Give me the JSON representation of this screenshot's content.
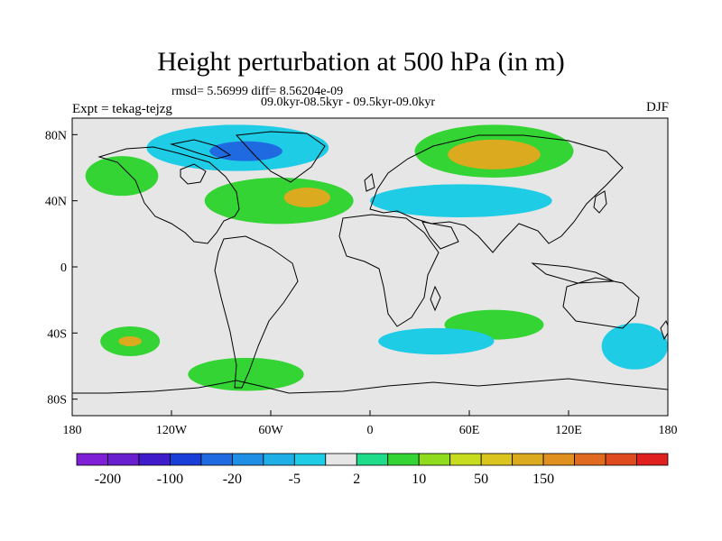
{
  "title": "Height perturbation at 500 hPa (in m)",
  "stats_line": "rmsd= 5.56999  diff= 8.56204e-09",
  "periods_line": "09.0kyr-08.5kyr - 09.5kyr-09.0kyr",
  "experiment": "Expt = tekag-tejzg",
  "season": "DJF",
  "lat_ticks": [
    "80N",
    "40N",
    "0",
    "40S",
    "80S"
  ],
  "lon_ticks": [
    "180",
    "120W",
    "60W",
    "0",
    "60E",
    "120E",
    "180"
  ],
  "colorbar": {
    "colors": [
      "#7f1fd6",
      "#6a1fcf",
      "#3f1bc9",
      "#1a3fd9",
      "#1f6ae0",
      "#1f8fe6",
      "#1fafe6",
      "#1fcce6",
      "#e6e6e6",
      "#1fdc8a",
      "#33d433",
      "#8fdc1f",
      "#c8dc1f",
      "#dcc41f",
      "#dcaa1f",
      "#e0901f",
      "#e06a1f",
      "#e04a1f",
      "#e01f1f"
    ],
    "labels": [
      "-200",
      "-100",
      "-20",
      "-5",
      "2",
      "10",
      "50",
      "150"
    ]
  },
  "map": {
    "lon_range": [
      -180,
      180
    ],
    "lat_range": [
      -90,
      90
    ],
    "background_color": "#e6e6e6",
    "contour_regions": [
      {
        "name": "arctic-canada-negative",
        "lon": -80,
        "lat": 72,
        "rx": 55,
        "ry": 14,
        "level": "-5"
      },
      {
        "name": "arctic-canada-core",
        "lon": -75,
        "lat": 70,
        "rx": 22,
        "ry": 6,
        "level": "-20"
      },
      {
        "name": "north-pacific-positive",
        "lon": -150,
        "lat": 55,
        "rx": 22,
        "ry": 12,
        "level": "10"
      },
      {
        "name": "north-atlantic-positive",
        "lon": -55,
        "lat": 40,
        "rx": 45,
        "ry": 14,
        "level": "10"
      },
      {
        "name": "north-atlantic-core",
        "lon": -38,
        "lat": 42,
        "rx": 14,
        "ry": 6,
        "level": "50"
      },
      {
        "name": "siberia-positive",
        "lon": 75,
        "lat": 70,
        "rx": 48,
        "ry": 16,
        "level": "10"
      },
      {
        "name": "siberia-core",
        "lon": 75,
        "lat": 68,
        "rx": 28,
        "ry": 9,
        "level": "50"
      },
      {
        "name": "eurasia-negative",
        "lon": 55,
        "lat": 40,
        "rx": 55,
        "ry": 10,
        "level": "-5"
      },
      {
        "name": "south-indian-positive",
        "lon": 75,
        "lat": -35,
        "rx": 30,
        "ry": 9,
        "level": "10"
      },
      {
        "name": "south-pacific-positive",
        "lon": -145,
        "lat": -45,
        "rx": 18,
        "ry": 9,
        "level": "10"
      },
      {
        "name": "south-pacific-core",
        "lon": -145,
        "lat": -45,
        "rx": 7,
        "ry": 3,
        "level": "50"
      },
      {
        "name": "south-atlantic-positive",
        "lon": -75,
        "lat": -65,
        "rx": 35,
        "ry": 10,
        "level": "10"
      },
      {
        "name": "southern-ocean-negative",
        "lon": 40,
        "lat": -45,
        "rx": 35,
        "ry": 8,
        "level": "-5"
      },
      {
        "name": "australia-south-negative",
        "lon": 160,
        "lat": -48,
        "rx": 20,
        "ry": 14,
        "level": "-5"
      }
    ]
  }
}
